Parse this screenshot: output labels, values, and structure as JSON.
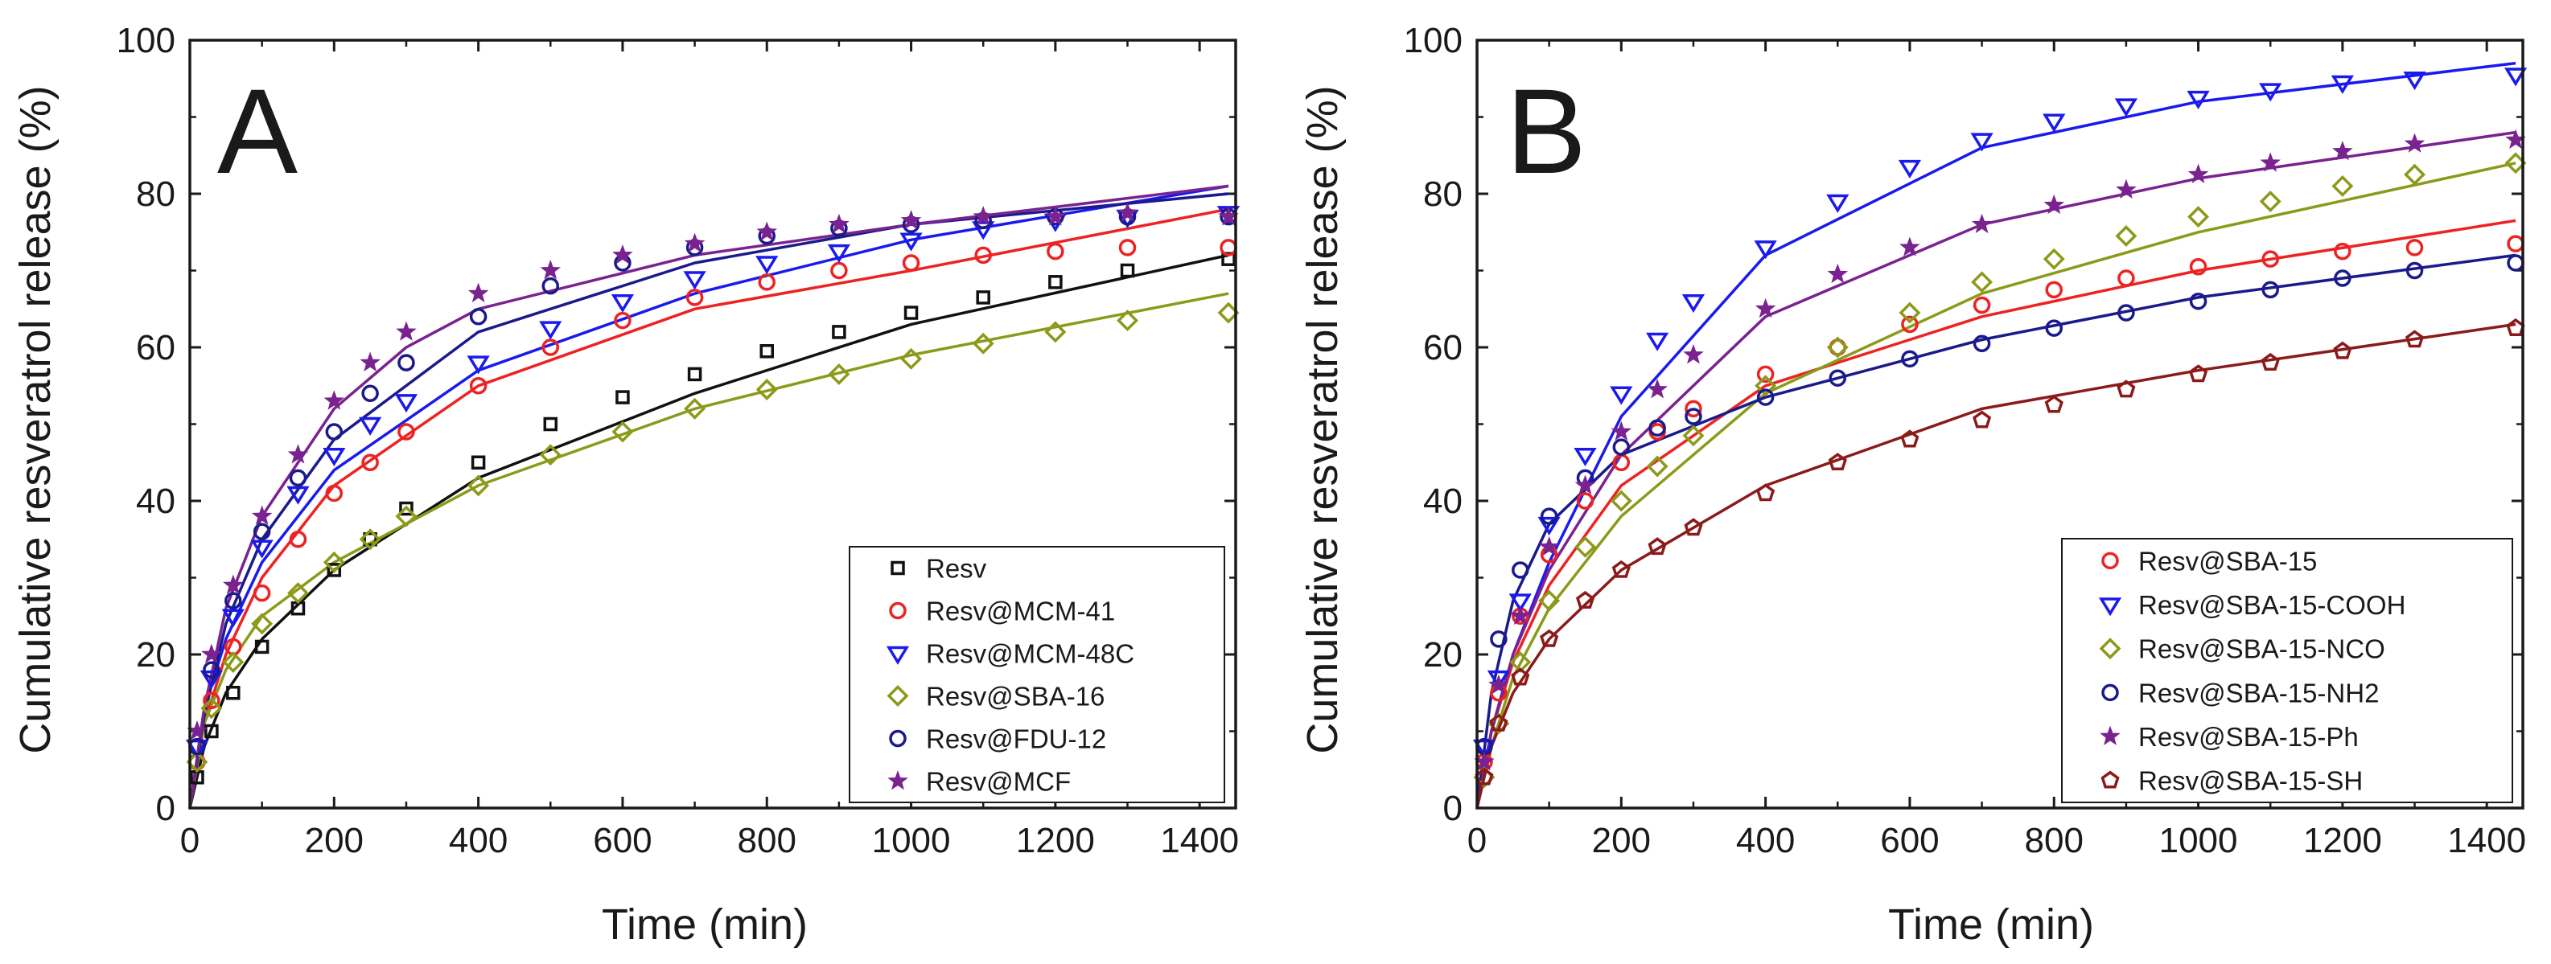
{
  "chart_data": [
    {
      "type": "scatter",
      "panel_label": "A",
      "xlabel": "Time (min)",
      "ylabel": "Cumulative resveratrol release (%)",
      "xlim": [
        0,
        1450
      ],
      "ylim": [
        0,
        100
      ],
      "xticks": [
        0,
        200,
        400,
        600,
        800,
        1000,
        1200,
        1400
      ],
      "yticks": [
        0,
        20,
        40,
        60,
        80,
        100
      ],
      "legend_position": "bottom-right",
      "series": [
        {
          "name": "Resv",
          "color": "#111111",
          "marker": "square",
          "x": [
            10,
            30,
            60,
            100,
            150,
            200,
            250,
            300,
            400,
            500,
            600,
            700,
            800,
            900,
            1000,
            1100,
            1200,
            1300,
            1440
          ],
          "y": [
            4,
            10,
            15,
            21,
            26,
            31,
            35,
            39,
            45,
            50,
            53.5,
            56.5,
            59.5,
            62,
            64.5,
            66.5,
            68.5,
            70,
            71.5
          ],
          "fit_x": [
            0,
            20,
            50,
            100,
            200,
            400,
            700,
            1000,
            1440
          ],
          "fit_y": [
            0,
            8,
            15,
            22,
            31,
            43,
            54,
            63,
            72
          ]
        },
        {
          "name": "Resv@MCM-41",
          "color": "#ee2222",
          "marker": "circle",
          "x": [
            10,
            30,
            60,
            100,
            150,
            200,
            250,
            300,
            400,
            500,
            600,
            700,
            800,
            900,
            1000,
            1100,
            1200,
            1300,
            1440
          ],
          "y": [
            6,
            14,
            21,
            28,
            35,
            41,
            45,
            49,
            55,
            60,
            63.5,
            66.5,
            68.5,
            70,
            71,
            72,
            72.5,
            73,
            73
          ],
          "fit_x": [
            0,
            20,
            50,
            100,
            200,
            400,
            700,
            1000,
            1440
          ],
          "fit_y": [
            0,
            11,
            20,
            30,
            42,
            55,
            65,
            70,
            78
          ]
        },
        {
          "name": "Resv@MCM-48C",
          "color": "#1a1aee",
          "marker": "triangle-down",
          "x": [
            10,
            30,
            60,
            100,
            150,
            200,
            250,
            300,
            400,
            500,
            600,
            700,
            800,
            900,
            1000,
            1100,
            1200,
            1300,
            1440
          ],
          "y": [
            8,
            17,
            25,
            34,
            41,
            46,
            50,
            53,
            58,
            62.5,
            66,
            69,
            71,
            72.5,
            74,
            75.5,
            76.5,
            77,
            77.5
          ],
          "fit_x": [
            0,
            20,
            50,
            100,
            200,
            400,
            700,
            1000,
            1440
          ],
          "fit_y": [
            0,
            13,
            22,
            32,
            44,
            57,
            67,
            74,
            81
          ]
        },
        {
          "name": "Resv@SBA-16",
          "color": "#8c9a1a",
          "marker": "diamond",
          "x": [
            10,
            30,
            60,
            100,
            150,
            200,
            250,
            300,
            400,
            500,
            600,
            700,
            800,
            900,
            1000,
            1100,
            1200,
            1300,
            1440
          ],
          "y": [
            6,
            13,
            19,
            24,
            28,
            32,
            35,
            38,
            42,
            46,
            49,
            52,
            54.5,
            56.5,
            58.5,
            60.5,
            62,
            63.5,
            64.5
          ],
          "fit_x": [
            0,
            20,
            50,
            100,
            200,
            400,
            700,
            1000,
            1440
          ],
          "fit_y": [
            0,
            11,
            18,
            25,
            32,
            42,
            52,
            59,
            67
          ]
        },
        {
          "name": "Resv@FDU-12",
          "color": "#1a1a8c",
          "marker": "circle",
          "x": [
            10,
            30,
            60,
            100,
            150,
            200,
            250,
            300,
            400,
            500,
            600,
            700,
            800,
            900,
            1000,
            1100,
            1200,
            1300,
            1440
          ],
          "y": [
            8,
            18,
            27,
            36,
            43,
            49,
            54,
            58,
            64,
            68,
            71,
            73,
            74.5,
            75.5,
            76,
            76.5,
            77,
            77,
            77
          ],
          "fit_x": [
            0,
            20,
            50,
            100,
            200,
            400,
            700,
            1000,
            1440
          ],
          "fit_y": [
            0,
            12,
            24,
            35,
            48,
            62,
            71,
            76,
            80
          ]
        },
        {
          "name": "Resv@MCF",
          "color": "#7a2290",
          "marker": "star",
          "x": [
            10,
            30,
            60,
            100,
            150,
            200,
            250,
            300,
            400,
            500,
            600,
            700,
            800,
            900,
            1000,
            1100,
            1200,
            1300,
            1440
          ],
          "y": [
            10,
            20,
            29,
            38,
            46,
            53,
            58,
            62,
            67,
            70,
            72,
            73.5,
            75,
            76,
            76.5,
            77,
            77,
            77.5,
            77
          ],
          "fit_x": [
            0,
            20,
            50,
            100,
            200,
            300,
            400,
            700,
            1000,
            1440
          ],
          "fit_y": [
            0,
            13,
            26,
            38,
            52,
            60,
            65,
            72,
            76,
            81
          ]
        }
      ]
    },
    {
      "type": "scatter",
      "panel_label": "B",
      "xlabel": "Time (min)",
      "ylabel": "Cumulative resveratrol release (%)",
      "xlim": [
        0,
        1450
      ],
      "ylim": [
        0,
        100
      ],
      "xticks": [
        0,
        200,
        400,
        600,
        800,
        1000,
        1200,
        1400
      ],
      "yticks": [
        0,
        20,
        40,
        60,
        80,
        100
      ],
      "legend_position": "bottom-right",
      "series": [
        {
          "name": "Resv@SBA-15",
          "color": "#ee2222",
          "marker": "circle",
          "x": [
            10,
            30,
            60,
            100,
            150,
            200,
            250,
            300,
            400,
            500,
            600,
            700,
            800,
            900,
            1000,
            1100,
            1200,
            1300,
            1440
          ],
          "y": [
            6,
            15,
            25,
            33,
            40,
            45,
            49,
            52,
            56.5,
            60,
            63,
            65.5,
            67.5,
            69,
            70.5,
            71.5,
            72.5,
            73,
            73.5
          ],
          "fit_x": [
            0,
            20,
            50,
            100,
            200,
            400,
            700,
            1000,
            1440
          ],
          "fit_y": [
            0,
            10,
            19,
            29,
            42,
            55,
            64,
            70,
            76.5
          ]
        },
        {
          "name": "Resv@SBA-15-COOH",
          "color": "#1a1aee",
          "marker": "triangle-down",
          "x": [
            10,
            30,
            60,
            100,
            150,
            200,
            250,
            300,
            400,
            500,
            600,
            700,
            800,
            900,
            1000,
            1100,
            1200,
            1300,
            1440
          ],
          "y": [
            8,
            17,
            27,
            37,
            46,
            54,
            61,
            66,
            73,
            79,
            83.5,
            87,
            89.5,
            91.5,
            92.5,
            93.5,
            94.5,
            95,
            95.5
          ],
          "fit_x": [
            0,
            20,
            50,
            100,
            200,
            400,
            700,
            1000,
            1440
          ],
          "fit_y": [
            0,
            10,
            20,
            32,
            51,
            72,
            86,
            92,
            97
          ]
        },
        {
          "name": "Resv@SBA-15-NCO",
          "color": "#8c9a1a",
          "marker": "diamond",
          "x": [
            10,
            30,
            60,
            100,
            150,
            200,
            250,
            300,
            400,
            500,
            600,
            700,
            800,
            900,
            1000,
            1100,
            1200,
            1300,
            1440
          ],
          "y": [
            4,
            11,
            19,
            27,
            34,
            40,
            44.5,
            48.5,
            55,
            60,
            64.5,
            68.5,
            71.5,
            74.5,
            77,
            79,
            81,
            82.5,
            84
          ],
          "fit_x": [
            0,
            20,
            50,
            100,
            200,
            400,
            700,
            1000,
            1440
          ],
          "fit_y": [
            0,
            8,
            17,
            26,
            38,
            54,
            67,
            75,
            84
          ]
        },
        {
          "name": "Resv@SBA-15-NH2",
          "color": "#1a1a8c",
          "marker": "circle",
          "x": [
            10,
            30,
            60,
            100,
            150,
            200,
            250,
            300,
            400,
            500,
            600,
            700,
            800,
            900,
            1000,
            1100,
            1200,
            1300,
            1440
          ],
          "y": [
            8,
            22,
            31,
            38,
            43,
            47,
            49.5,
            51,
            53.5,
            56,
            58.5,
            60.5,
            62.5,
            64.5,
            66,
            67.5,
            69,
            70,
            71
          ],
          "fit_x": [
            0,
            20,
            50,
            100,
            200,
            400,
            700,
            1000,
            1440
          ],
          "fit_y": [
            0,
            15,
            27,
            37,
            46,
            53.5,
            61,
            66.5,
            72
          ]
        },
        {
          "name": "Resv@SBA-15-Ph",
          "color": "#7a2290",
          "marker": "star",
          "x": [
            10,
            30,
            60,
            100,
            150,
            200,
            250,
            300,
            400,
            500,
            600,
            700,
            800,
            900,
            1000,
            1100,
            1200,
            1300,
            1440
          ],
          "y": [
            6,
            16,
            25,
            34,
            42,
            49,
            54.5,
            59,
            65,
            69.5,
            73,
            76,
            78.5,
            80.5,
            82.5,
            84,
            85.5,
            86.5,
            87
          ],
          "fit_x": [
            0,
            20,
            50,
            100,
            200,
            400,
            700,
            1000,
            1440
          ],
          "fit_y": [
            0,
            10,
            20,
            31,
            46,
            64,
            76,
            82,
            88
          ]
        },
        {
          "name": "Resv@SBA-15-SH",
          "color": "#8b1a1a",
          "marker": "pentagon",
          "x": [
            10,
            30,
            60,
            100,
            150,
            200,
            250,
            300,
            400,
            500,
            600,
            700,
            800,
            900,
            1000,
            1100,
            1200,
            1300,
            1440
          ],
          "y": [
            4,
            11,
            17,
            22,
            27,
            31,
            34,
            36.5,
            41,
            45,
            48,
            50.5,
            52.5,
            54.5,
            56.5,
            58,
            59.5,
            61,
            62.5
          ],
          "fit_x": [
            0,
            20,
            50,
            100,
            200,
            400,
            700,
            1000,
            1440
          ],
          "fit_y": [
            0,
            8,
            15,
            22,
            31,
            42,
            52,
            57,
            63
          ]
        }
      ]
    }
  ]
}
